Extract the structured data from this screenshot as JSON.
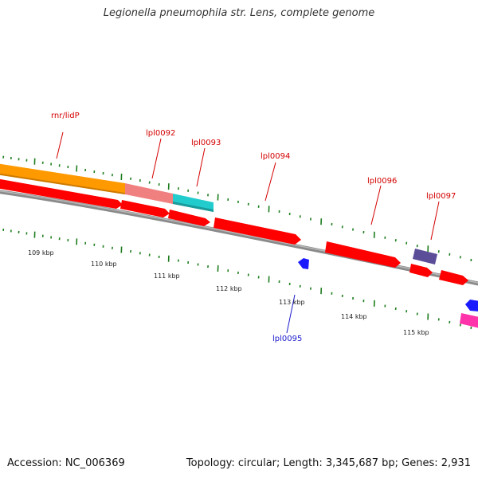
{
  "title": "Legionella pneumophila str. Lens, complete genome",
  "footer": {
    "accession": "Accession: NC_006369",
    "summary": "Topology: circular; Length: 3,345,687 bp; Genes: 2,931"
  },
  "colors": {
    "forward_label": "#d40000",
    "reverse_label": "#1a1acc",
    "tick": "#1e7d1e",
    "backbone": "#808080",
    "cds": "#ff0000",
    "orange": "#ff9900",
    "salmon": "#f08080",
    "cyan": "#22cccc",
    "purple": "#5c4d99",
    "blue": "#1a1aff",
    "magenta": "#ff33aa"
  },
  "gene_labels": [
    {
      "id": "rnr-lidp",
      "text": "rnr/lidP",
      "strand": "forward"
    },
    {
      "id": "lpl0092",
      "text": "lpl0092",
      "strand": "forward"
    },
    {
      "id": "lpl0093",
      "text": "lpl0093",
      "strand": "forward"
    },
    {
      "id": "lpl0094",
      "text": "lpl0094",
      "strand": "forward"
    },
    {
      "id": "lpl0096",
      "text": "lpl0096",
      "strand": "forward"
    },
    {
      "id": "lpl0097",
      "text": "lpl0097",
      "strand": "forward"
    },
    {
      "id": "lpl0095",
      "text": "lpl0095",
      "strand": "reverse"
    }
  ],
  "kbp_labels": [
    "109 kbp",
    "110 kbp",
    "111 kbp",
    "112 kbp",
    "113 kbp",
    "114 kbp",
    "115 kbp"
  ]
}
